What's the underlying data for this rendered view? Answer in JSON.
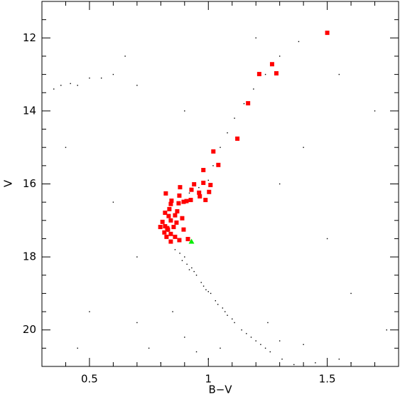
{
  "chart_data": {
    "type": "scatter",
    "xlabel": "B−V",
    "ylabel": "V",
    "xlim": [
      0.3,
      1.8
    ],
    "ylim": [
      11,
      21
    ],
    "y_inverted": true,
    "xticks": [
      0.5,
      1,
      1.5
    ],
    "yticks": [
      12,
      14,
      16,
      18,
      20
    ],
    "xminorticks": [
      0.4,
      0.6,
      0.7,
      0.8,
      0.9,
      1.1,
      1.2,
      1.3,
      1.4,
      1.6,
      1.7
    ],
    "yminorticks": [
      11.5,
      12.5,
      13,
      13.5,
      14.5,
      15,
      15.5,
      16.5,
      17,
      17.5,
      18.5,
      19,
      19.5,
      20.5
    ],
    "series": [
      {
        "color": "#000000",
        "marker": "dot",
        "x": [
          0.86,
          0.88,
          0.9,
          0.91,
          0.93,
          0.95,
          0.97,
          0.99,
          1.01,
          1.03,
          1.06,
          1.08,
          1.11,
          1.14,
          1.18,
          1.22,
          1.26,
          1.31,
          1.36,
          0.89,
          0.94,
          0.98,
          1.04,
          1.1,
          1.16,
          1.24,
          0.92,
          1.0,
          1.07,
          1.2,
          0.85,
          0.9,
          0.95,
          1.0,
          0.8,
          1.05,
          1.3,
          1.45,
          1.55,
          1.6,
          0.75,
          0.7,
          1.25,
          1.4,
          0.82,
          0.81,
          0.83,
          0.85,
          0.88,
          0.92,
          0.96,
          1.0,
          1.02,
          1.05,
          1.08,
          1.11,
          1.15,
          1.19,
          1.24,
          1.3,
          1.38,
          0.35,
          0.38,
          0.42,
          0.45,
          0.5,
          0.55,
          0.6,
          0.7,
          0.4,
          0.6,
          0.7,
          1.3,
          1.5,
          1.6,
          1.7,
          0.5,
          1.2,
          0.9,
          1.4,
          0.65,
          1.75,
          0.45,
          1.55
        ],
        "y": [
          17.8,
          17.9,
          18.0,
          18.2,
          18.3,
          18.5,
          18.7,
          18.9,
          19.0,
          19.2,
          19.4,
          19.6,
          19.8,
          20.0,
          20.2,
          20.4,
          20.6,
          20.8,
          20.95,
          18.1,
          18.4,
          18.8,
          19.3,
          19.7,
          20.1,
          20.5,
          18.35,
          18.95,
          19.5,
          20.3,
          19.5,
          20.2,
          20.6,
          20.8,
          20.9,
          20.5,
          20.3,
          20.9,
          20.8,
          20.9,
          20.5,
          19.8,
          19.8,
          20.4,
          16.8,
          17.0,
          17.3,
          16.5,
          16.35,
          16.25,
          16.1,
          15.9,
          15.5,
          15.0,
          14.6,
          14.2,
          13.8,
          13.4,
          13.0,
          12.5,
          12.1,
          13.4,
          13.3,
          13.25,
          13.3,
          13.1,
          13.1,
          13.0,
          13.3,
          15,
          16.5,
          18,
          16,
          17.5,
          19,
          14,
          19.5,
          12,
          14,
          15,
          12.5,
          20,
          20.5,
          13
        ]
      },
      {
        "color": "#ff0000",
        "marker": "square",
        "x": [
          1.5,
          1.268,
          1.214,
          1.286,
          1.167,
          1.122,
          1.021,
          1.042,
          0.979,
          0.94,
          1.009,
          0.979,
          0.929,
          1.003,
          0.881,
          0.821,
          0.878,
          0.964,
          0.961,
          0.988,
          0.926,
          0.896,
          0.845,
          0.842,
          0.875,
          0.908,
          0.836,
          0.869,
          0.818,
          0.833,
          0.86,
          0.807,
          0.842,
          0.89,
          0.818,
          0.798,
          0.854,
          0.83,
          0.896,
          0.815,
          0.842,
          0.824,
          0.86,
          0.878,
          0.842,
          0.914,
          0.827,
          0.866
        ],
        "y": [
          11.86,
          12.72,
          12.99,
          12.97,
          13.79,
          14.76,
          15.11,
          15.48,
          15.62,
          16.01,
          16.03,
          15.97,
          16.16,
          16.22,
          16.09,
          16.26,
          16.32,
          16.34,
          16.24,
          16.44,
          16.44,
          16.49,
          16.46,
          16.55,
          16.53,
          16.47,
          16.69,
          16.75,
          16.79,
          16.88,
          16.86,
          17.04,
          17.0,
          16.94,
          17.16,
          17.18,
          17.18,
          17.25,
          17.25,
          17.33,
          17.37,
          17.45,
          17.45,
          17.54,
          17.58,
          17.51,
          17.21,
          17.06
        ]
      },
      {
        "color": "#00ee00",
        "marker": "triangle",
        "x": [
          0.929
        ],
        "y": [
          17.58
        ]
      }
    ]
  }
}
